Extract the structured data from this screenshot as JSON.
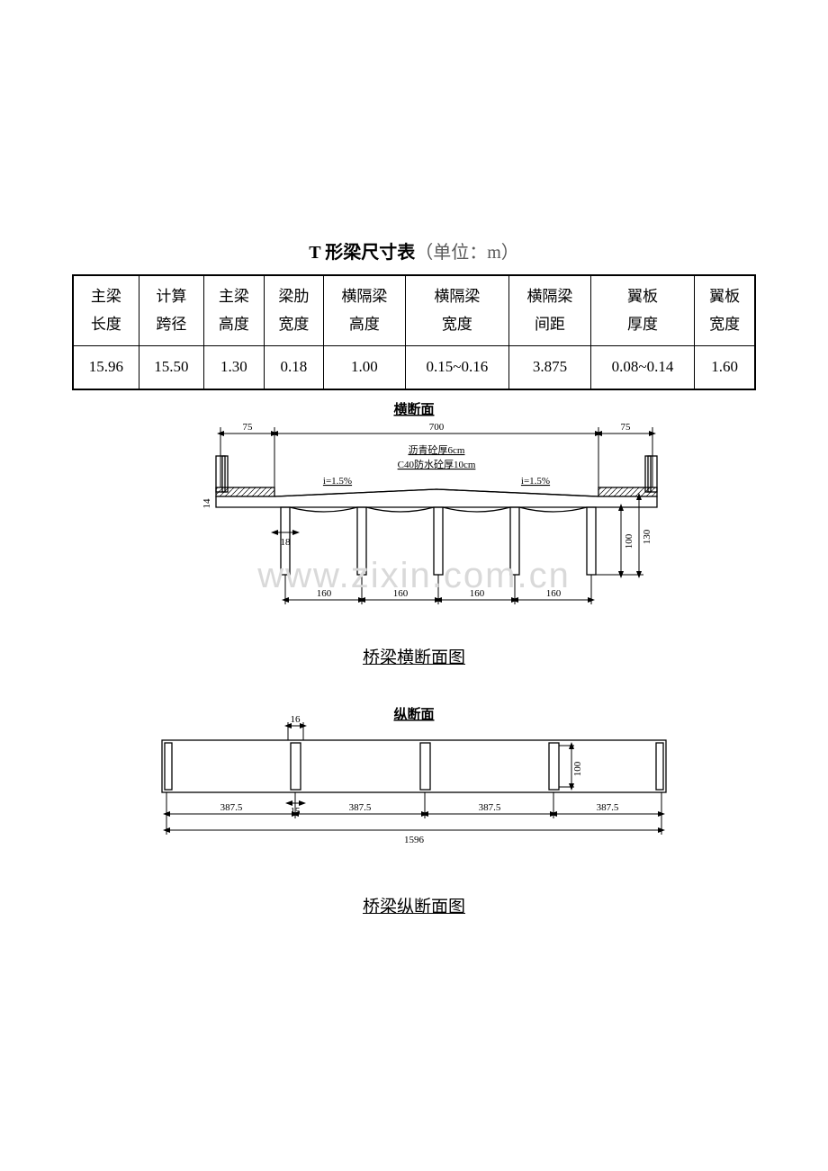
{
  "title": {
    "bold": "T 形梁尺寸表",
    "unit": "（单位：m）"
  },
  "table": {
    "headers": [
      {
        "l1": "主梁",
        "l2": "长度"
      },
      {
        "l1": "计算",
        "l2": "跨径"
      },
      {
        "l1": "主梁",
        "l2": "高度"
      },
      {
        "l1": "梁肋",
        "l2": "宽度"
      },
      {
        "l1": "横隔梁",
        "l2": "高度"
      },
      {
        "l1": "横隔梁",
        "l2": "宽度"
      },
      {
        "l1": "横隔梁",
        "l2": "间距"
      },
      {
        "l1": "翼板",
        "l2": "厚度"
      },
      {
        "l1": "翼板",
        "l2": "宽度"
      }
    ],
    "row": [
      "15.96",
      "15.50",
      "1.30",
      "0.18",
      "1.00",
      "0.15~0.16",
      "3.875",
      "0.08~0.14",
      "1.60"
    ]
  },
  "cross_section": {
    "title": "横断面",
    "caption": "桥梁横断面图",
    "dims": {
      "left_edge": "75",
      "road": "700",
      "right_edge": "75",
      "asphalt": "沥青砼厚6cm",
      "waterproof": "C40防水砼厚10cm",
      "slope": "i=1.5%",
      "rib": "18",
      "bay": "160",
      "h100": "100",
      "h130": "130",
      "h14": "14"
    },
    "watermark": "www.zixin.com.cn"
  },
  "longi_section": {
    "title": "纵断面",
    "caption": "桥梁纵断面图",
    "dims": {
      "top16": "16",
      "bot15": "15",
      "seg": "387.5",
      "total": "1596",
      "h100": "100"
    }
  },
  "colors": {
    "line": "#000000",
    "bg": "#ffffff",
    "hatch": "#000000"
  }
}
